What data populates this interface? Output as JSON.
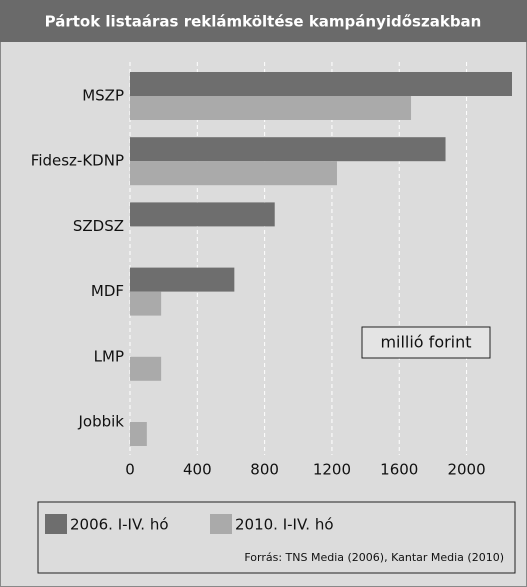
{
  "chart_data": {
    "type": "hbar",
    "title": "Pártok listaáras reklámköltése kampányidőszakban",
    "categories": [
      "MSZP",
      "Fidesz-KDNP",
      "SZDSZ",
      "MDF",
      "LMP",
      "Jobbik"
    ],
    "series": [
      {
        "name": "2006. I-IV. hó",
        "color": "#6e6e6e",
        "values": [
          2270,
          1875,
          860,
          620,
          null,
          null
        ]
      },
      {
        "name": "2010. I-IV. hó",
        "color": "#aaaaaa",
        "values": [
          1670,
          1230,
          null,
          185,
          185,
          100
        ]
      }
    ],
    "xlim": [
      0,
      2270
    ],
    "xticks": [
      0,
      400,
      800,
      1200,
      1600,
      2000
    ],
    "grid": true,
    "annotation": "millió forint",
    "source": "Forrás: TNS Media (2006), Kantar Media (2010)"
  }
}
